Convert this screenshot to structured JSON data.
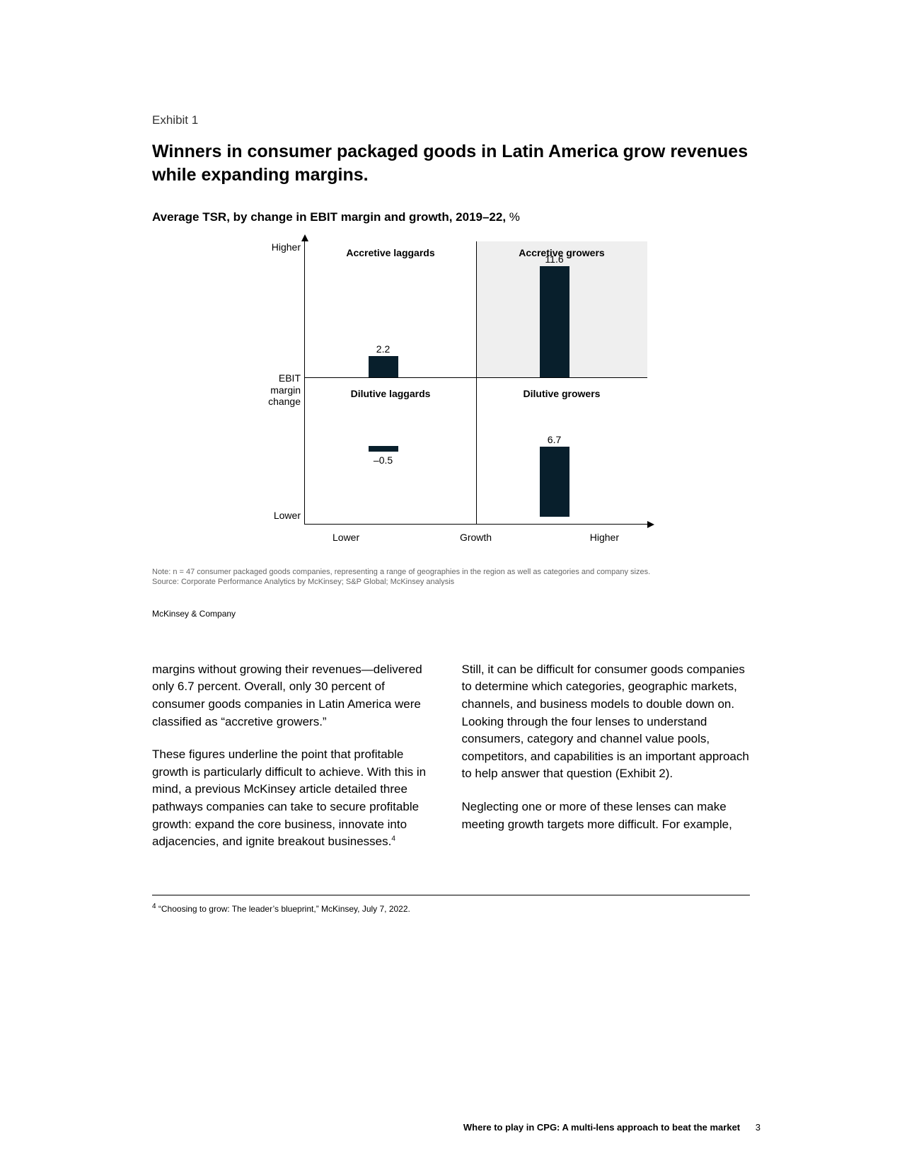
{
  "exhibit": {
    "label": "Exhibit 1",
    "title": "Winners in consumer packaged goods in Latin America grow revenues while expanding margins.",
    "subtitle_main": "Average TSR, by change in EBIT margin and growth, 2019–22, ",
    "subtitle_unit": "%"
  },
  "chart": {
    "type": "quadrant-bar",
    "bar_color": "#081f2c",
    "highlight_color": "#efefef",
    "max_value": 12,
    "y_axis": {
      "top": "Higher",
      "mid_line1": "EBIT",
      "mid_line2": "margin",
      "mid_line3": "change",
      "bottom": "Lower"
    },
    "x_axis": {
      "left": "Lower",
      "mid": "Growth",
      "right": "Higher"
    },
    "quadrants": {
      "tl": {
        "label": "Accretive laggards",
        "value": "2.2",
        "value_num": 2.2
      },
      "tr": {
        "label": "Accretive growers",
        "value": "11.6",
        "value_num": 11.6,
        "highlight": true
      },
      "bl": {
        "label": "Dilutive laggards",
        "value": "–0.5",
        "value_num": -0.5
      },
      "br": {
        "label": "Dilutive growers",
        "value": "6.7",
        "value_num": 6.7
      }
    },
    "note": "Note: n = 47 consumer packaged goods companies, representing a range of geographies in the region as well as categories and company sizes.",
    "source": "Source: Corporate Performance Analytics by McKinsey; S&P Global; McKinsey analysis",
    "attribution": "McKinsey & Company"
  },
  "body": {
    "left_p1": "margins without growing their revenues—delivered only 6.7 percent. Overall, only 30 percent of consumer goods companies in Latin America were classified as “accretive growers.”",
    "left_p2": "These figures underline the point that profitable growth is particularly difficult to achieve. With this in mind, a previous McKinsey article detailed three pathways companies can take to secure profitable growth: expand the core business, innovate into adjacencies, and ignite breakout businesses.",
    "left_p2_sup": "4",
    "right_p1": "Still, it can be difficult for consumer goods companies to determine which categories, geographic markets, channels, and business models to double down on. Looking through the four lenses to understand consumers, category and channel value pools, competitors, and capabilities is an important approach to help answer that question (Exhibit 2).",
    "right_p2": "Neglecting one or more of these lenses can make meeting growth targets more difficult. For example,"
  },
  "footnote": {
    "sup": "4",
    "text": " “Choosing to grow: The leader’s blueprint,” McKinsey, July 7, 2022."
  },
  "footer": {
    "title": "Where to play in CPG: A multi-lens approach to beat the market",
    "page": "3"
  }
}
